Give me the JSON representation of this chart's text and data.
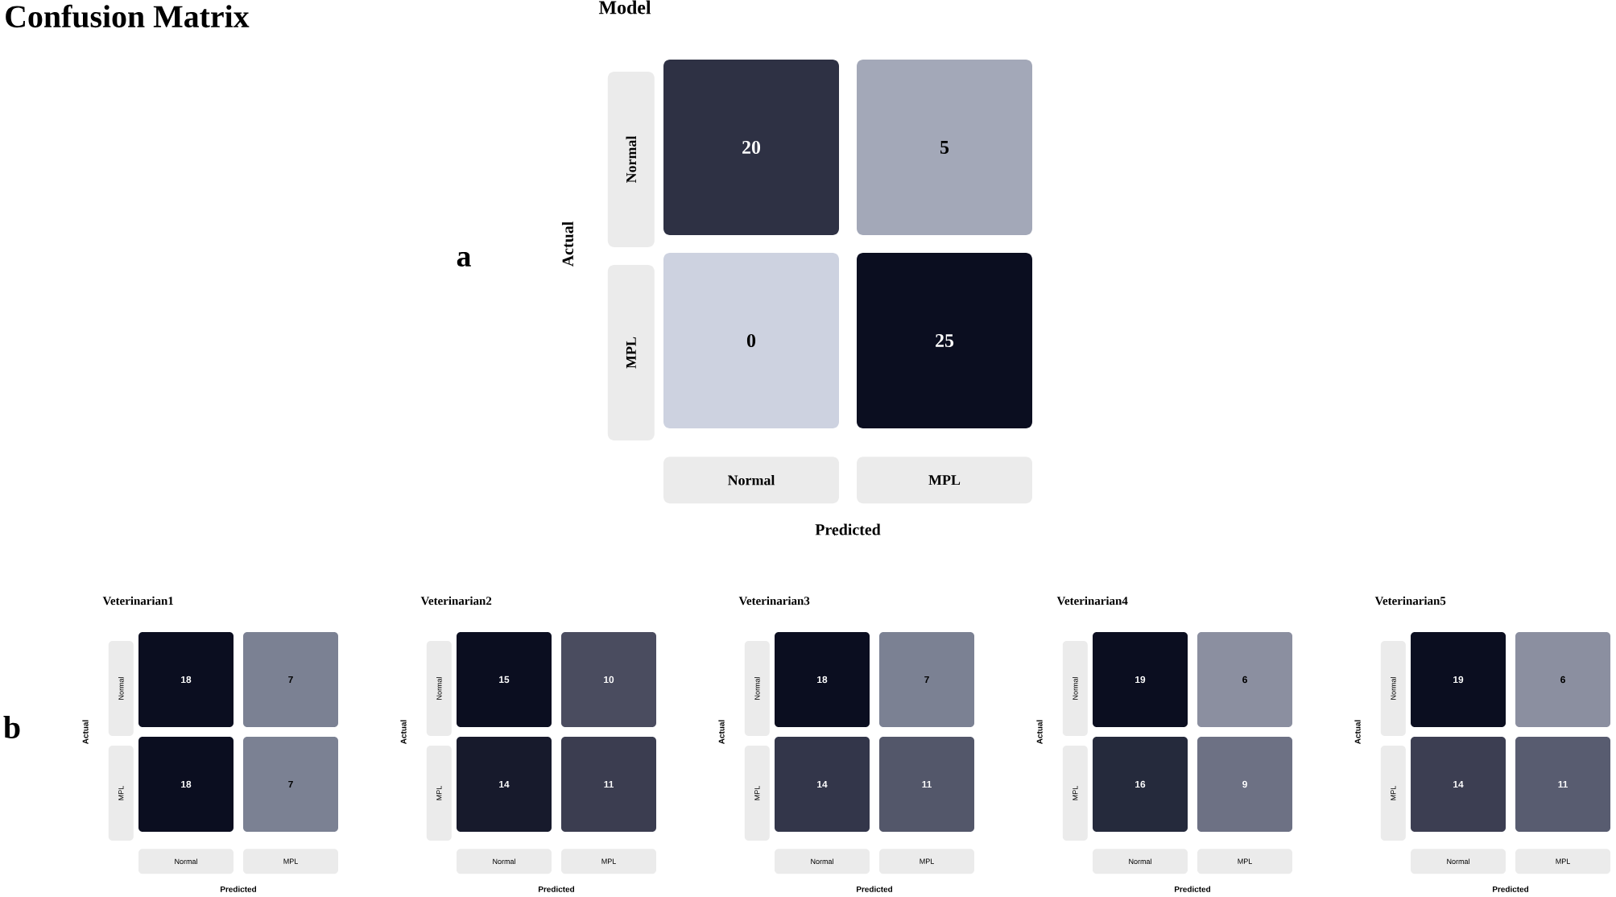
{
  "chart_data": [
    {
      "type": "heatmap",
      "title": "Model",
      "xlabel": "Predicted",
      "ylabel": "Actual",
      "categories": [
        "Normal",
        "MPL"
      ],
      "y_categories": [
        "Normal",
        "MPL"
      ],
      "cells": [
        [
          20,
          5
        ],
        [
          0,
          25
        ]
      ],
      "colors": [
        "#2e3144",
        "#a3a8b8",
        "#cdd2e0",
        "#0b0e20"
      ],
      "data_labels": true,
      "annotations": [
        "Confusion Matrix",
        "a"
      ]
    },
    {
      "type": "heatmap",
      "title": "Veterinarian1",
      "xlabel": "Predicted",
      "ylabel": "Actual",
      "categories": [
        "Normal",
        "MPL"
      ],
      "y_categories": [
        "Normal",
        "MPL"
      ],
      "cells": [
        [
          18,
          7
        ],
        [
          18,
          7
        ]
      ],
      "colors": [
        "#0b0e20",
        "#7b8193",
        "#0b0e20",
        "#7b8193"
      ],
      "data_labels": true,
      "annotations": [
        "b"
      ]
    },
    {
      "type": "heatmap",
      "title": "Veterinarian2",
      "xlabel": "Predicted",
      "ylabel": "Actual",
      "categories": [
        "Normal",
        "MPL"
      ],
      "y_categories": [
        "Normal",
        "MPL"
      ],
      "cells": [
        [
          15,
          10
        ],
        [
          14,
          11
        ]
      ],
      "colors": [
        "#0b0e20",
        "#4a4c5f",
        "#171a2c",
        "#3b3d50"
      ],
      "data_labels": true
    },
    {
      "type": "heatmap",
      "title": "Veterinarian3",
      "xlabel": "Predicted",
      "ylabel": "Actual",
      "categories": [
        "Normal",
        "MPL"
      ],
      "y_categories": [
        "Normal",
        "MPL"
      ],
      "cells": [
        [
          18,
          7
        ],
        [
          14,
          11
        ]
      ],
      "colors": [
        "#0b0e20",
        "#7b8193",
        "#33364a",
        "#53576a"
      ],
      "data_labels": true
    },
    {
      "type": "heatmap",
      "title": "Veterinarian4",
      "xlabel": "Predicted",
      "ylabel": "Actual",
      "categories": [
        "Normal",
        "MPL"
      ],
      "y_categories": [
        "Normal",
        "MPL"
      ],
      "cells": [
        [
          19,
          6
        ],
        [
          16,
          9
        ]
      ],
      "colors": [
        "#0b0e20",
        "#8b8fa0",
        "#252a3c",
        "#6d7184"
      ],
      "data_labels": true
    },
    {
      "type": "heatmap",
      "title": "Veterinarian5",
      "xlabel": "Predicted",
      "ylabel": "Actual",
      "categories": [
        "Normal",
        "MPL"
      ],
      "y_categories": [
        "Normal",
        "MPL"
      ],
      "cells": [
        [
          19,
          6
        ],
        [
          14,
          11
        ]
      ],
      "colors": [
        "#0b0e20",
        "#8b8fa0",
        "#3c3e52",
        "#585c70"
      ],
      "data_labels": true
    }
  ]
}
